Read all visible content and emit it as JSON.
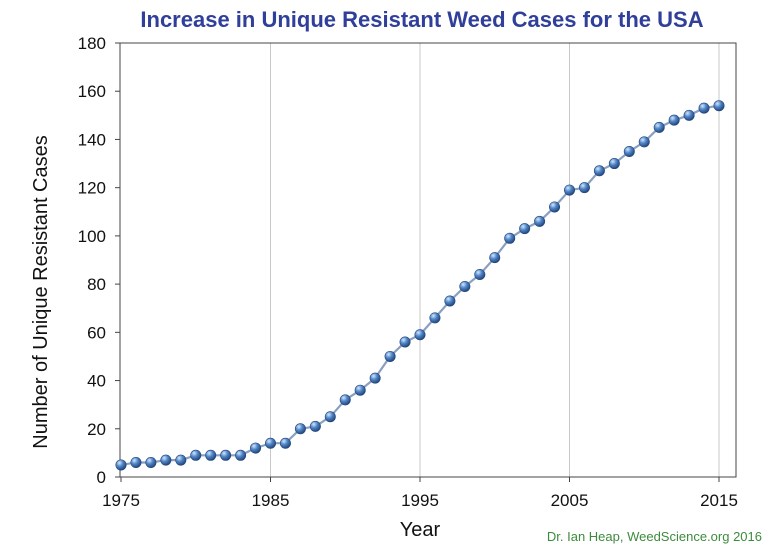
{
  "chart_data": {
    "type": "line",
    "title": "Increase in Unique Resistant Weed Cases for the USA",
    "xlabel": "Year",
    "ylabel": "Number of Unique Resistant Cases",
    "xlim": [
      1975,
      2016
    ],
    "ylim": [
      0,
      180
    ],
    "x_ticks": [
      1975,
      1985,
      1995,
      2005,
      2015
    ],
    "y_ticks": [
      0,
      20,
      40,
      60,
      80,
      100,
      120,
      140,
      160,
      180
    ],
    "grid": "vertical",
    "series": [
      {
        "x": [
          1975,
          1976,
          1977,
          1978,
          1979,
          1980,
          1981,
          1982,
          1983,
          1984,
          1985,
          1986,
          1987,
          1988,
          1989,
          1990,
          1991,
          1992,
          1993,
          1994,
          1995,
          1996,
          1997,
          1998,
          1999,
          2000,
          2001,
          2002,
          2003,
          2004,
          2005,
          2006,
          2007,
          2008,
          2009,
          2010,
          2011,
          2012,
          2013,
          2014,
          2015
        ],
        "y": [
          5,
          6,
          6,
          7,
          7,
          9,
          9,
          9,
          9,
          12,
          14,
          14,
          20,
          21,
          25,
          32,
          36,
          41,
          50,
          56,
          59,
          66,
          73,
          79,
          84,
          91,
          99,
          103,
          106,
          112,
          119,
          120,
          127,
          130,
          135,
          139,
          145,
          148,
          150,
          153,
          154
        ]
      }
    ],
    "marker_color": "#3a6fb5",
    "line_color": "#8aa0c0",
    "title_color": "#2f3f9a"
  },
  "credit": "Dr. Ian Heap, WeedScience.org  2016"
}
